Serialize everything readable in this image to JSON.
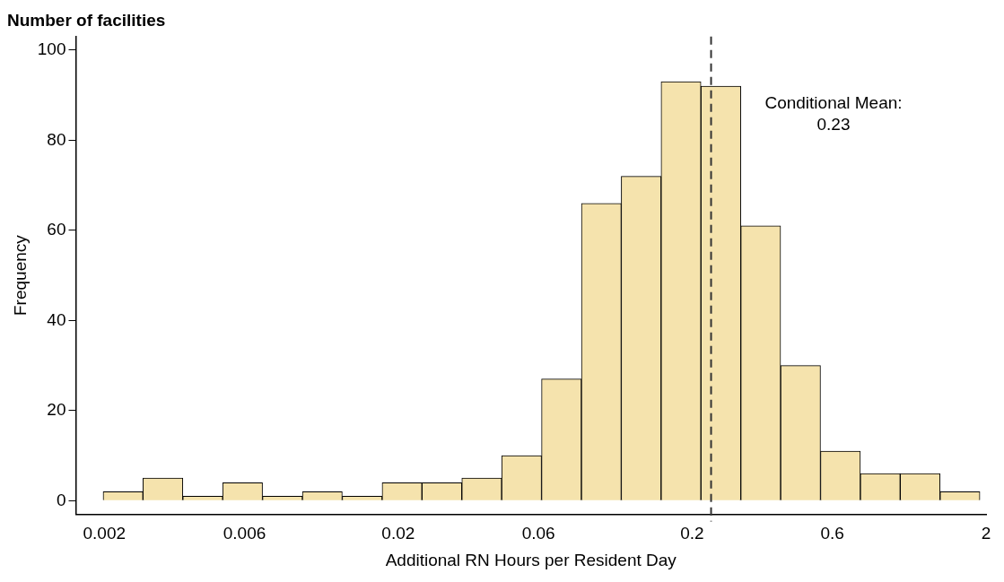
{
  "chart_data": {
    "type": "histogram",
    "title": "Number of facilities",
    "xlabel": "Additional RN Hours per Resident Day",
    "ylabel": "Frequency",
    "bins": [
      0.001982,
      0.002707,
      0.003701,
      0.005055,
      0.006908,
      0.009441,
      0.0129,
      0.01763,
      0.02409,
      0.03292,
      0.04498,
      0.06147,
      0.084,
      0.1148,
      0.1568,
      0.2143,
      0.2928,
      0.4001,
      0.5468,
      0.7471,
      1.021,
      1.395,
      1.906
    ],
    "values": [
      2,
      5,
      1,
      4,
      1,
      2,
      1,
      4,
      4,
      5,
      10,
      27,
      66,
      72,
      93,
      92,
      61,
      30,
      11,
      6,
      6,
      2
    ],
    "color": "#f5e3ad",
    "log": "x",
    "xlim": [
      0.0016,
      2
    ],
    "xticks": [
      0.002,
      0.006,
      0.02,
      0.06,
      0.2,
      0.6,
      2
    ],
    "ylim": [
      -3,
      103
    ],
    "yticks": [
      0,
      20,
      40,
      60,
      80,
      100
    ],
    "grid": false,
    "legend": false,
    "annotations": [
      "Conditional Mean:\n0.23"
    ],
    "ref_lines": [
      {
        "axis": "x",
        "value": 0.232,
        "color": "#333333",
        "line_style": "dashed"
      }
    ]
  }
}
